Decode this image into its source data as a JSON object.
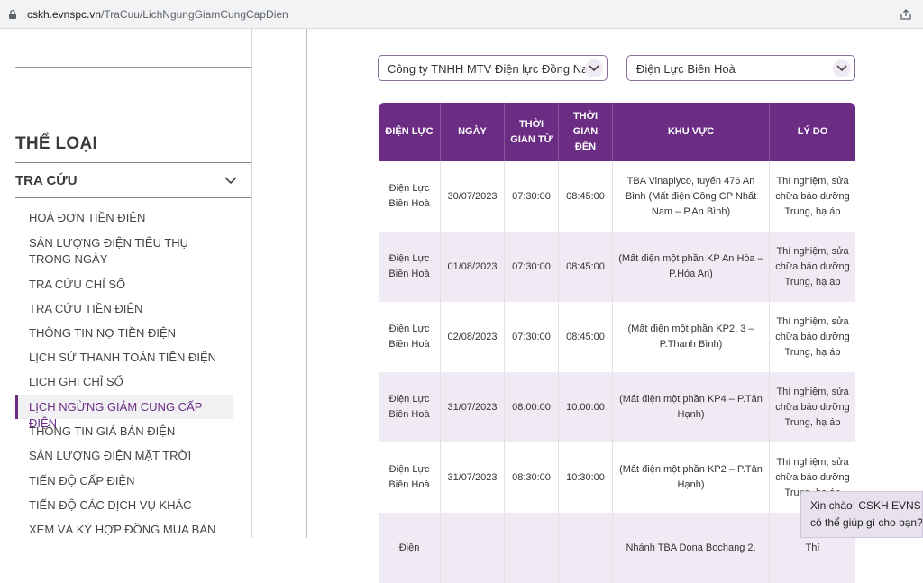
{
  "browser": {
    "url_domain": "cskh.evnspc.vn",
    "url_path": "/TraCuu/LichNgungGiamCungCapDien"
  },
  "sidebar": {
    "category_title": "THỂ LOẠI",
    "section_label": "TRA CỨU",
    "items": [
      {
        "label": "HOÁ ĐƠN TIỀN ĐIỆN"
      },
      {
        "label": "SẢN LƯỢNG ĐIỆN TIÊU THỤ TRONG NGÀY"
      },
      {
        "label": "TRA CỨU CHỈ SỐ"
      },
      {
        "label": "TRA CỨU TIỀN ĐIỆN"
      },
      {
        "label": "THÔNG TIN NỢ TIỀN ĐIỆN"
      },
      {
        "label": "LỊCH SỬ THANH TOÁN TIỀN ĐIỆN"
      },
      {
        "label": "LỊCH GHI CHỈ SỐ"
      },
      {
        "label": "LỊCH NGỪNG GIẢM CUNG CẤP ĐIỆN",
        "active": true
      },
      {
        "label": "THÔNG TIN GIÁ BÁN ĐIỆN"
      },
      {
        "label": "SẢN LƯỢNG ĐIỆN MẶT TRỜI"
      },
      {
        "label": "TIẾN ĐỘ CẤP ĐIỆN"
      },
      {
        "label": "TIẾN ĐỘ CÁC DỊCH VỤ KHÁC"
      },
      {
        "label": "XEM VÀ KÝ HỢP ĐỒNG MUA BÁN"
      }
    ]
  },
  "filters": {
    "company": "Công ty TNHH MTV Điện lực Đồng Nai",
    "branch": "Điện Lực Biên Hoà"
  },
  "table": {
    "headers": [
      "ĐIỆN LỰC",
      "NGÀY",
      "THỜI GIAN TỪ",
      "THỜI GIAN ĐẾN",
      "KHU VỰC",
      "LÝ DO"
    ],
    "rows": [
      [
        "Điện Lực Biên Hoà",
        "30/07/2023",
        "07:30:00",
        "08:45:00",
        "TBA Vinaplyco, tuyến 476 An Bình (Mất điện Công CP Nhất Nam – P.An Bình)",
        "Thí nghiệm, sửa chữa bảo dưỡng Trung, hạ áp"
      ],
      [
        "Điện Lực Biên Hoà",
        "01/08/2023",
        "07:30:00",
        "08:45:00",
        "(Mất điện một phần KP An Hòa – P.Hóa An)",
        "Thí nghiệm, sửa chữa bảo dưỡng Trung, hạ áp"
      ],
      [
        "Điện Lực Biên Hoà",
        "02/08/2023",
        "07:30:00",
        "08:45:00",
        "(Mất điện một phần KP2, 3 – P.Thanh Bình)",
        "Thí nghiệm, sửa chữa bảo dưỡng Trung, hạ áp"
      ],
      [
        "Điện Lực Biên Hoà",
        "31/07/2023",
        "08:00:00",
        "10:00:00",
        "(Mất điện một phần KP4 – P.Tân Hạnh)",
        "Thí nghiệm, sửa chữa bảo dưỡng Trung, hạ áp"
      ],
      [
        "Điện Lực Biên Hoà",
        "31/07/2023",
        "08:30:00",
        "10:30:00",
        "(Mất điện một phần KP2 – P.Tân Hạnh)",
        "Thí nghiệm, sửa chữa bảo dưỡng Trung, hạ áp"
      ],
      [
        "Điện",
        "",
        "",
        "",
        "Nhánh TBA Dona Bochang 2,",
        "Thí"
      ]
    ]
  },
  "chat": {
    "line1": "Xin chào! CSKH EVNS",
    "line2": "có thể giúp gì cho bạn?"
  }
}
